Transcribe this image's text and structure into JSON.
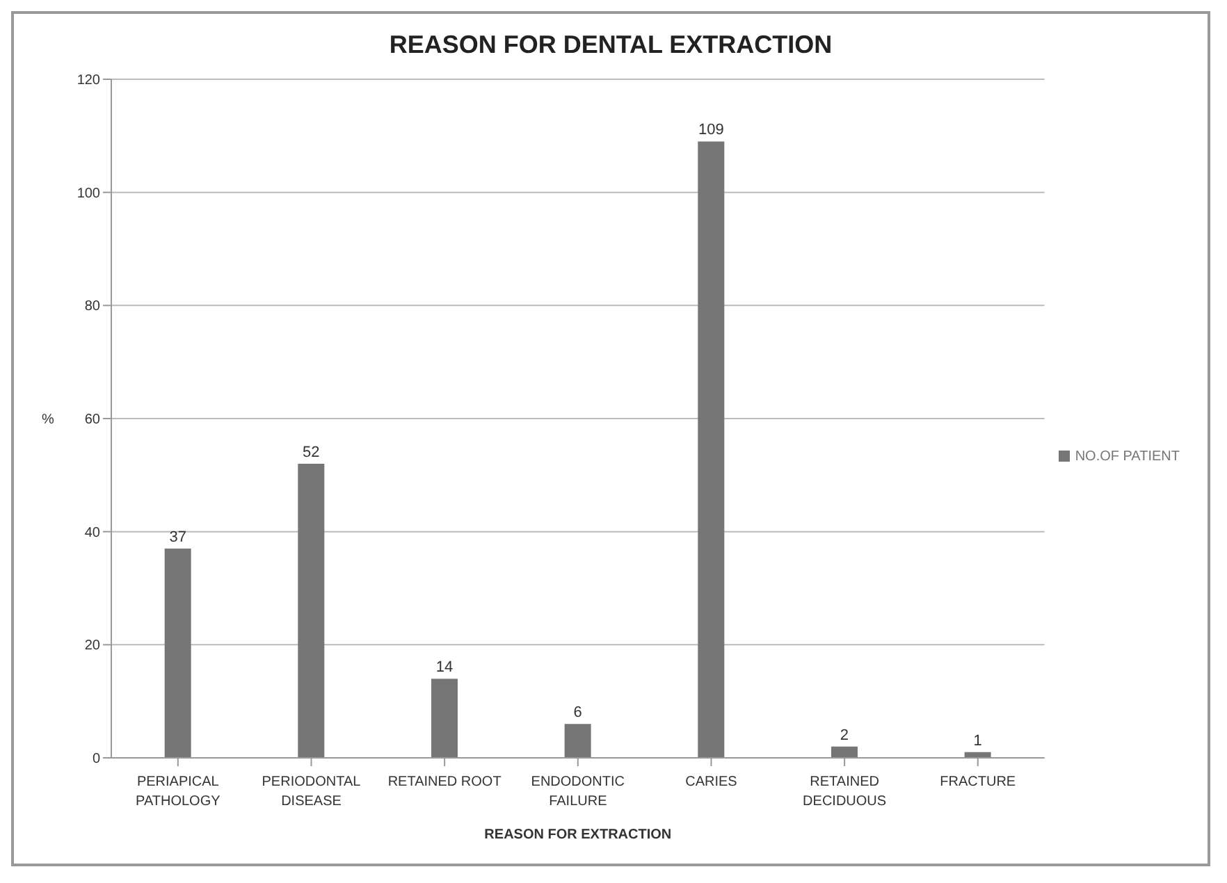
{
  "chart_data": {
    "type": "bar",
    "title": "REASON FOR DENTAL EXTRACTION",
    "xlabel": "REASON FOR EXTRACTION",
    "ylabel": "%",
    "categories": [
      "PERIAPICAL PATHOLOGY",
      "PERIODONTAL DISEASE",
      "RETAINED ROOT",
      "ENDODONTIC FAILURE",
      "CARIES",
      "RETAINED DECIDUOUS",
      "FRACTURE"
    ],
    "series": [
      {
        "name": "NO.OF PATIENT",
        "color": "#767676",
        "values": [
          37,
          52,
          14,
          6,
          109,
          2,
          1
        ]
      }
    ],
    "ylim": [
      0,
      120
    ],
    "yticks": [
      0,
      20,
      40,
      60,
      80,
      100,
      120
    ],
    "grid": "y",
    "legend": "right",
    "data_labels": true
  }
}
